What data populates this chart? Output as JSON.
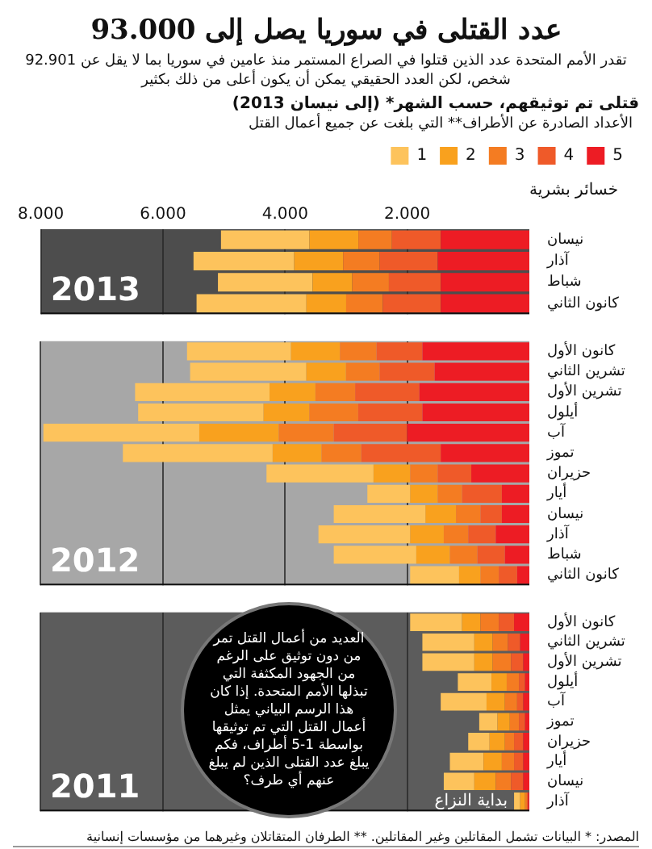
{
  "chart_data": [
    {
      "type": "bar",
      "orientation": "horizontal",
      "stacked": true,
      "title": "عدد القتلى في سوريا يصل إلى 93.000",
      "subtitle": "تقدر الأمم المتحدة عدد الذين قتلوا في الصراع المستمر منذ عامين في سوريا بما لا يقل عن 92.901 شخص، لكن العدد الحقيقي يمكن أن يكون أعلى من ذلك بكثير",
      "xlabel": "خسائر بشرية",
      "legend_title": "الأعداد الصادرة عن الأطراف** التي بلغت عن جميع أعمال القتل",
      "categories": [
        "نيسان",
        "آذار",
        "شباط",
        "كانون الثاني"
      ],
      "series": [
        {
          "name": "5",
          "color": "#ed1c24",
          "values": [
            1450,
            1500,
            1450,
            1450
          ]
        },
        {
          "name": "4",
          "color": "#ef5a29",
          "values": [
            800,
            950,
            850,
            950
          ]
        },
        {
          "name": "3",
          "color": "#f47c22",
          "values": [
            550,
            600,
            600,
            600
          ]
        },
        {
          "name": "2",
          "color": "#f9a11e",
          "values": [
            800,
            800,
            650,
            650
          ]
        },
        {
          "name": "1",
          "color": "#fdc35c",
          "values": [
            1450,
            1650,
            1550,
            1800
          ]
        }
      ],
      "xlim": [
        8000,
        0
      ],
      "xticks": [
        {
          "value": 8000,
          "label": "8.000"
        },
        {
          "value": 6000,
          "label": "6.000"
        },
        {
          "value": 4000,
          "label": "4.000"
        },
        {
          "value": 2000,
          "label": "2.000"
        }
      ],
      "grid": "x",
      "legend": "top right",
      "annotations": [
        "قتلى تم توثيقهم، حسب الشهر* (إلى نيسان 2013)",
        "2013"
      ]
    },
    {
      "type": "bar",
      "orientation": "horizontal",
      "stacked": true,
      "categories": [
        "كانون الأول",
        "تشرين الثاني",
        "تشرين الأول",
        "أيلول",
        "آب",
        "تموز",
        "حزيران",
        "أيار",
        "نيسان",
        "آذار",
        "شباط",
        "كانون الثاني"
      ],
      "series": [
        {
          "color": "#ed1c24",
          "values": [
            1750,
            1550,
            1800,
            1750,
            2000,
            1450,
            950,
            450,
            450,
            550,
            400,
            200
          ]
        },
        {
          "color": "#ef5a29",
          "values": [
            750,
            900,
            1050,
            1050,
            1200,
            1300,
            550,
            650,
            350,
            450,
            450,
            300
          ]
        },
        {
          "color": "#f47c22",
          "values": [
            600,
            550,
            650,
            800,
            900,
            650,
            450,
            400,
            400,
            400,
            450,
            300
          ]
        },
        {
          "color": "#f9a11e",
          "values": [
            800,
            650,
            750,
            750,
            1300,
            800,
            600,
            450,
            500,
            550,
            550,
            350
          ]
        },
        {
          "color": "#fdc35c",
          "values": [
            1700,
            1900,
            2200,
            2050,
            2550,
            2450,
            1750,
            700,
            1500,
            1500,
            1350,
            800
          ]
        }
      ],
      "xlim": [
        8000,
        0
      ],
      "xticks": [
        {
          "value": 8000,
          "label": null
        },
        {
          "value": 6000,
          "label": null
        },
        {
          "value": 4000,
          "label": null
        },
        {
          "value": 2000,
          "label": null
        }
      ],
      "grid": "x",
      "tick_labels": "y",
      "annotations": [
        "2012"
      ]
    },
    {
      "type": "bar",
      "orientation": "horizontal",
      "stacked": true,
      "categories": [
        "كانون الأول",
        "تشرين الثاني",
        "تشرين الأول",
        "أيلول",
        "آب",
        "تموز",
        "حزيران",
        "أيار",
        "نيسان",
        "آذار"
      ],
      "series": [
        {
          "color": "#ed1c24",
          "values": [
            250,
            150,
            100,
            70,
            100,
            70,
            100,
            100,
            100,
            20
          ]
        },
        {
          "color": "#ef5a29",
          "values": [
            250,
            200,
            200,
            100,
            100,
            100,
            150,
            150,
            200,
            20
          ]
        },
        {
          "color": "#f47c22",
          "values": [
            300,
            250,
            300,
            200,
            200,
            150,
            150,
            200,
            250,
            30
          ]
        },
        {
          "color": "#f9a11e",
          "values": [
            300,
            300,
            300,
            250,
            300,
            200,
            250,
            300,
            350,
            80
          ]
        },
        {
          "color": "#fdc35c",
          "values": [
            850,
            850,
            850,
            550,
            750,
            300,
            350,
            550,
            500,
            100
          ]
        }
      ],
      "xlim": [
        8000,
        0
      ],
      "xticks": [
        {
          "value": 8000,
          "label": null
        },
        {
          "value": 6000,
          "label": null
        },
        {
          "value": 4000,
          "label": null
        },
        {
          "value": 2000,
          "label": null
        }
      ],
      "grid": "x",
      "tick_labels": "y",
      "annotations": [
        "2011",
        "العديد من أعمال القتل تمر من دون توثيق على الرغم من الجهود المكثفة التي تبذلها الأمم المتحدة. إذا كان هذا الرسم البياني يمثل أعمال القتل التي تم توثيقها بواسطة 1-5 أطراف، فكم يبلغ عدد القتلى الذين لم يبلغ عنهم أي طرف؟",
        "بداية النزاع",
        "المصدر: * البيانات تشمل المقاتلين وغير المقاتلين. ** الطرفان المتقاتلان وغيرهما من مؤسسات إنسانية"
      ]
    }
  ]
}
